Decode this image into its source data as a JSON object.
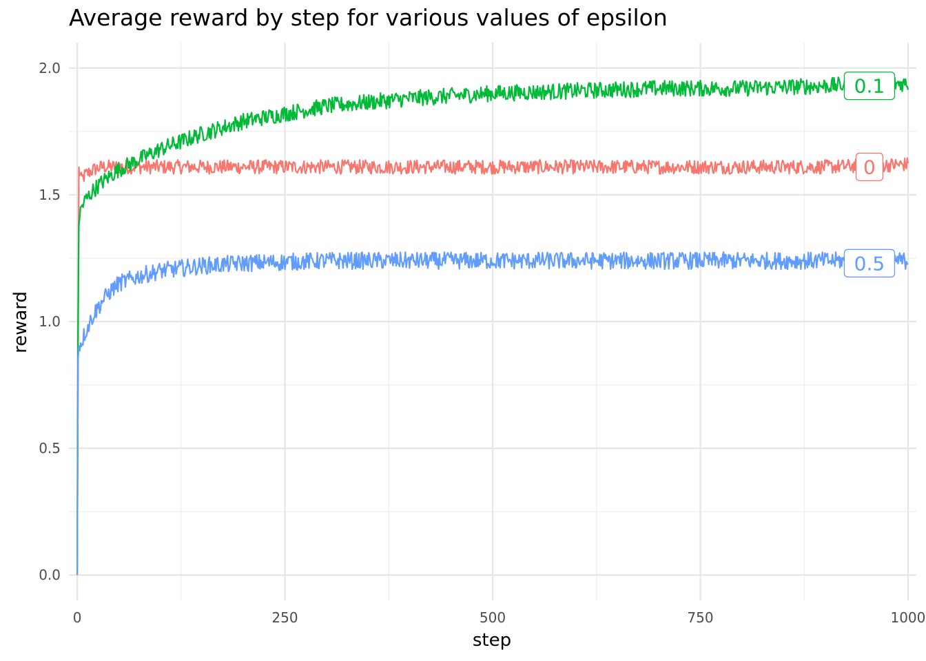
{
  "chart_data": {
    "type": "line",
    "title": "Average reward by step for various values of epsilon",
    "xlabel": "step",
    "ylabel": "reward",
    "xlim": [
      -10,
      1010
    ],
    "ylim": [
      -0.1,
      2.1
    ],
    "x_ticks": [
      0,
      250,
      500,
      750,
      1000
    ],
    "x_tick_labels": [
      "0",
      "250",
      "500",
      "750",
      "1000"
    ],
    "x_minor_ticks": [
      125,
      375,
      625,
      875
    ],
    "y_ticks": [
      0.0,
      0.5,
      1.0,
      1.5,
      2.0
    ],
    "y_tick_labels": [
      "0.0",
      "0.5",
      "1.0",
      "1.5",
      "2.0"
    ],
    "y_minor_ticks": [
      0.25,
      0.75,
      1.25,
      1.75
    ],
    "grid": true,
    "legend": "none (direct end labels)",
    "series": [
      {
        "label": "0",
        "color": "#F8766D",
        "x": [
          0,
          2,
          5,
          10,
          20,
          30,
          50,
          75,
          100,
          150,
          200,
          300,
          400,
          500,
          600,
          700,
          800,
          900,
          1000
        ],
        "y": [
          0.0,
          1.6,
          1.56,
          1.58,
          1.6,
          1.61,
          1.61,
          1.61,
          1.61,
          1.61,
          1.61,
          1.61,
          1.61,
          1.61,
          1.61,
          1.61,
          1.61,
          1.61,
          1.62
        ],
        "end_label_y": 1.61
      },
      {
        "label": "0.1",
        "color": "#00BA38",
        "x": [
          0,
          1,
          2,
          5,
          10,
          20,
          30,
          50,
          75,
          100,
          150,
          200,
          250,
          300,
          400,
          500,
          600,
          700,
          800,
          900,
          1000
        ],
        "y": [
          0.0,
          1.0,
          1.4,
          1.45,
          1.48,
          1.52,
          1.55,
          1.6,
          1.64,
          1.68,
          1.74,
          1.79,
          1.82,
          1.85,
          1.88,
          1.9,
          1.91,
          1.92,
          1.92,
          1.93,
          1.94
        ],
        "end_label_y": 1.93
      },
      {
        "label": "0.5",
        "color": "#619CFF",
        "x": [
          0,
          1,
          2,
          5,
          10,
          20,
          30,
          40,
          50,
          75,
          100,
          150,
          200,
          300,
          400,
          500,
          600,
          700,
          800,
          900,
          1000
        ],
        "y": [
          0.0,
          0.85,
          0.9,
          0.92,
          0.96,
          1.03,
          1.08,
          1.12,
          1.15,
          1.18,
          1.2,
          1.22,
          1.23,
          1.24,
          1.24,
          1.24,
          1.24,
          1.24,
          1.24,
          1.24,
          1.24
        ],
        "end_label_y": 1.23
      }
    ]
  }
}
